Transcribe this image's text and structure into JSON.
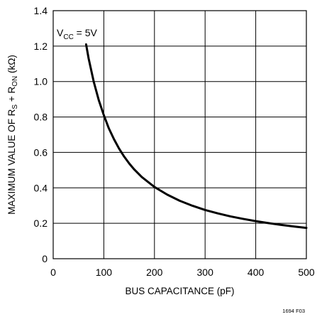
{
  "chart_data": {
    "type": "line",
    "title": "",
    "annotation": {
      "prefix": "V",
      "subscript": "CC",
      "suffix": " = 5V"
    },
    "xlabel": "BUS CAPACITANCE (pF)",
    "ylabel": {
      "part1": "MAXIMUM VALUE OF R",
      "sub1": "S",
      "part2": " + R",
      "sub2": "ON",
      "part3": " (kΩ)"
    },
    "xlim": [
      0,
      500
    ],
    "ylim": [
      0,
      1.4
    ],
    "x_ticks": [
      0,
      100,
      200,
      300,
      400,
      500
    ],
    "x_tick_labels": [
      "0",
      "100",
      "200",
      "300",
      "400",
      "500"
    ],
    "y_ticks": [
      0,
      0.2,
      0.4,
      0.6,
      0.8,
      1.0,
      1.2,
      1.4
    ],
    "y_tick_labels": [
      "0",
      "0.2",
      "0.4",
      "0.6",
      "0.8",
      "1.0",
      "1.2",
      "1.4"
    ],
    "grid": true,
    "series": [
      {
        "x": [
          65,
          70,
          80,
          90,
          100,
          110,
          120,
          130,
          140,
          150,
          160,
          175,
          200,
          225,
          250,
          275,
          300,
          325,
          350,
          375,
          400,
          425,
          450,
          475,
          500
        ],
        "y": [
          1.21,
          1.13,
          1.0,
          0.895,
          0.81,
          0.735,
          0.675,
          0.622,
          0.577,
          0.538,
          0.504,
          0.461,
          0.405,
          0.362,
          0.327,
          0.299,
          0.275,
          0.256,
          0.239,
          0.225,
          0.212,
          0.201,
          0.191,
          0.182,
          0.174
        ]
      }
    ],
    "series_color": "#000000",
    "figure_id": "1694 F03"
  }
}
